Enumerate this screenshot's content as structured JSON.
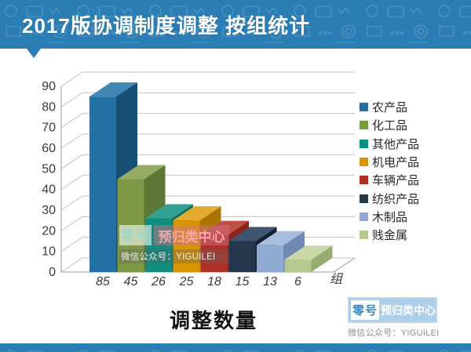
{
  "header": {
    "title": "2017版协调制度调整 按组统计",
    "bg_color": "#2b7eb4",
    "text_color": "#ffffff"
  },
  "chart_data": {
    "type": "bar",
    "projection": "3d",
    "title": "",
    "xlabel": "调整数量",
    "ylabel": "",
    "x_end_label": "组",
    "ylim": [
      0,
      90
    ],
    "yticks": [
      0,
      10,
      20,
      30,
      40,
      50,
      60,
      70,
      80,
      90
    ],
    "grid": true,
    "legend_position": "right",
    "categories": [
      "农产品",
      "化工品",
      "其他产品",
      "机电产品",
      "车辆产品",
      "纺织产品",
      "木制品",
      "贱金属"
    ],
    "values": [
      85,
      45,
      26,
      25,
      18,
      15,
      13,
      6
    ],
    "colors": [
      {
        "front": "#2270a4",
        "top": "#4087b4",
        "side": "#174e74"
      },
      {
        "front": "#7e9945",
        "top": "#95ab62",
        "side": "#5c7634"
      },
      {
        "front": "#108d7c",
        "top": "#33a191",
        "side": "#0b6b5e"
      },
      {
        "front": "#d89600",
        "top": "#e3ac2e",
        "side": "#a87503"
      },
      {
        "front": "#ae3129",
        "top": "#c04f46",
        "side": "#87251f"
      },
      {
        "front": "#24374d",
        "top": "#3d5570",
        "side": "#16222f"
      },
      {
        "front": "#90abd3",
        "top": "#a8bedf",
        "side": "#7089b3"
      },
      {
        "front": "#b7c98f",
        "top": "#c9d7a9",
        "side": "#97ac70"
      }
    ],
    "axis_color": "#9b9b9b",
    "grid_color": "#c3c3c3",
    "label_color": "#3a3a3a"
  },
  "watermark_chart": {
    "badge_primary": "零号",
    "badge_secondary": "预归类中心",
    "caption": "微信公众号：YIGUILEI"
  },
  "corner_logo": {
    "badge_primary": "零号",
    "badge_secondary": "预归类中心",
    "caption": "微信公众号：YIGUILEI"
  }
}
